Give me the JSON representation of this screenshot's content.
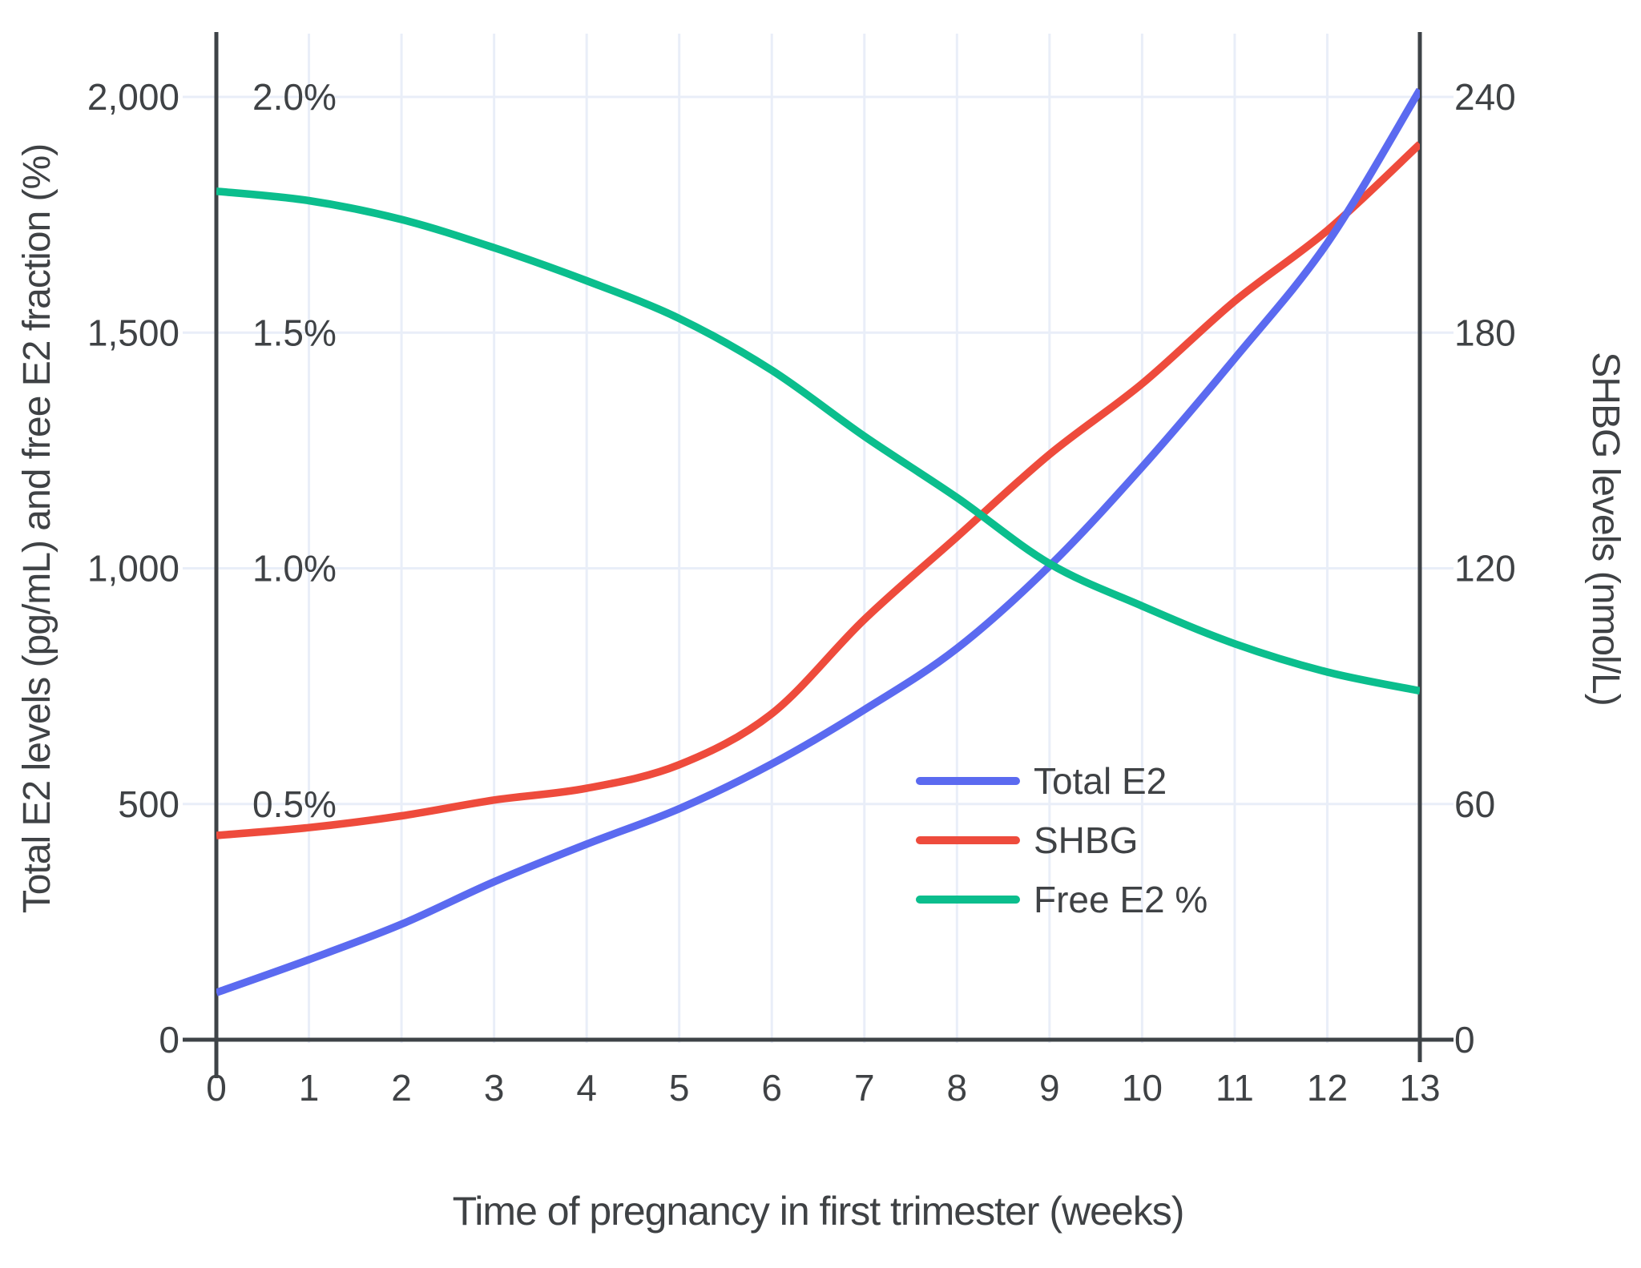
{
  "figure": {
    "x_title": "Time of pregnancy in first trimester (weeks)",
    "y_left_title": "Total E2 levels (pg/mL) and free E2 fraction (%)",
    "y_right_title": "SHBG levels (nmol/L)"
  },
  "colors": {
    "total_e2": "#5B6AF0",
    "shbg": "#EE4B3C",
    "free_e2": "#0BBE8D",
    "gridline": "#E9EEF8",
    "axis_line": "#3E4347",
    "text": "#3F4245"
  },
  "chart_data": {
    "type": "line",
    "title": "",
    "xlabel": "Time of pregnancy in first trimester (weeks)",
    "ylabel_left": "Total E2 levels (pg/mL) and free E2 fraction (%)",
    "ylabel_right": "SHBG levels (nmol/L)",
    "x": [
      0,
      1,
      2,
      3,
      4,
      5,
      6,
      7,
      8,
      9,
      10,
      11,
      12,
      13
    ],
    "x_tick_labels": [
      "0",
      "1",
      "2",
      "3",
      "4",
      "5",
      "6",
      "7",
      "8",
      "9",
      "10",
      "11",
      "12",
      "13"
    ],
    "xlim": [
      0,
      13
    ],
    "ylim_left": [
      0,
      2125
    ],
    "ylim_right": [
      0,
      255
    ],
    "grid": true,
    "legend_position": "inside-right-middle",
    "series": [
      {
        "name": "SHBG",
        "axis": "right",
        "unit": "nmol/L",
        "color": "#EE4B3C",
        "values": [
          52,
          54,
          57,
          61,
          64,
          70,
          83,
          107,
          128,
          149,
          167,
          188,
          206,
          228
        ]
      },
      {
        "name": "Total E2",
        "axis": "left",
        "unit": "pg/mL",
        "color": "#5B6AF0",
        "values": [
          100,
          170,
          245,
          335,
          415,
          490,
          585,
          700,
          830,
          1005,
          1215,
          1445,
          1690,
          2015
        ]
      },
      {
        "name": "Free E2 %",
        "axis": "left",
        "unit": "%",
        "multiplier": 1000,
        "color": "#0BBE8D",
        "values": [
          1.8,
          1.78,
          1.74,
          1.68,
          1.61,
          1.53,
          1.42,
          1.28,
          1.15,
          1.01,
          0.92,
          0.84,
          0.78,
          0.74
        ]
      }
    ],
    "legend_order": [
      "Total E2",
      "SHBG",
      "Free E2 %"
    ],
    "left_ticks": [
      {
        "value": 0,
        "label": "0"
      },
      {
        "value": 500,
        "label": "500"
      },
      {
        "value": 1000,
        "label": "1,000"
      },
      {
        "value": 1500,
        "label": "1,500"
      },
      {
        "value": 2000,
        "label": "2,000"
      }
    ],
    "right_ticks": [
      {
        "value": 0,
        "label": "0"
      },
      {
        "value": 60,
        "label": "60"
      },
      {
        "value": 120,
        "label": "120"
      },
      {
        "value": 180,
        "label": "180"
      },
      {
        "value": 240,
        "label": "240"
      }
    ],
    "percent_labels": [
      {
        "value": 500,
        "label": "0.5%"
      },
      {
        "value": 1000,
        "label": "1.0%"
      },
      {
        "value": 1500,
        "label": "1.5%"
      },
      {
        "value": 2000,
        "label": "2.0%"
      }
    ]
  }
}
